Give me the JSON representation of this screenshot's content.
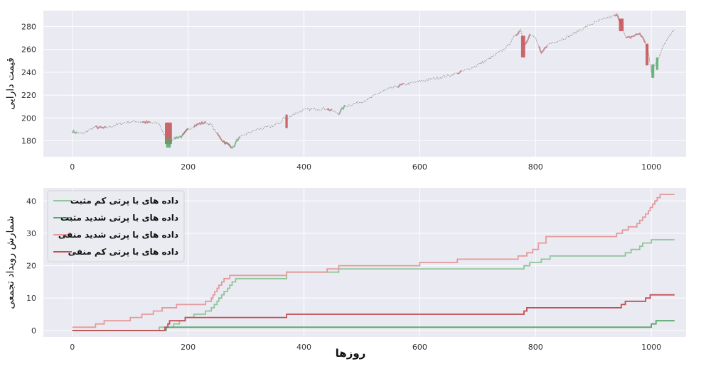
{
  "chart_data": [
    {
      "type": "line",
      "ylabel": "قیمت دارایی",
      "xlabel": "",
      "xlim": [
        -50,
        1060
      ],
      "ylim": [
        166,
        294
      ],
      "xticks": [
        0,
        200,
        400,
        600,
        800,
        1000
      ],
      "yticks": [
        180,
        200,
        220,
        240,
        260,
        280
      ],
      "grid": true,
      "price_anchors": [
        [
          0,
          188
        ],
        [
          10,
          187
        ],
        [
          20,
          186
        ],
        [
          30,
          190
        ],
        [
          40,
          192
        ],
        [
          55,
          191
        ],
        [
          70,
          193
        ],
        [
          90,
          196
        ],
        [
          110,
          197
        ],
        [
          130,
          196
        ],
        [
          150,
          195
        ],
        [
          160,
          184
        ],
        [
          165,
          177
        ],
        [
          172,
          181
        ],
        [
          180,
          183
        ],
        [
          190,
          184
        ],
        [
          200,
          190
        ],
        [
          210,
          193
        ],
        [
          220,
          195
        ],
        [
          230,
          196
        ],
        [
          240,
          194
        ],
        [
          250,
          186
        ],
        [
          260,
          180
        ],
        [
          268,
          177
        ],
        [
          278,
          174
        ],
        [
          285,
          181
        ],
        [
          300,
          186
        ],
        [
          320,
          190
        ],
        [
          340,
          192
        ],
        [
          360,
          196
        ],
        [
          365,
          201
        ],
        [
          370,
          198
        ],
        [
          380,
          203
        ],
        [
          400,
          207
        ],
        [
          420,
          208
        ],
        [
          440,
          208
        ],
        [
          460,
          204
        ],
        [
          470,
          210
        ],
        [
          490,
          213
        ],
        [
          510,
          216
        ],
        [
          530,
          222
        ],
        [
          550,
          226
        ],
        [
          570,
          229
        ],
        [
          590,
          231
        ],
        [
          610,
          233
        ],
        [
          630,
          235
        ],
        [
          650,
          237
        ],
        [
          670,
          240
        ],
        [
          690,
          244
        ],
        [
          710,
          249
        ],
        [
          730,
          255
        ],
        [
          750,
          262
        ],
        [
          765,
          272
        ],
        [
          775,
          278
        ],
        [
          780,
          263
        ],
        [
          790,
          273
        ],
        [
          800,
          270
        ],
        [
          810,
          256
        ],
        [
          820,
          264
        ],
        [
          840,
          268
        ],
        [
          860,
          272
        ],
        [
          880,
          278
        ],
        [
          900,
          283
        ],
        [
          920,
          287
        ],
        [
          940,
          290
        ],
        [
          948,
          284
        ],
        [
          955,
          270
        ],
        [
          960,
          270
        ],
        [
          970,
          272
        ],
        [
          980,
          274
        ],
        [
          990,
          266
        ],
        [
          995,
          256
        ],
        [
          1000,
          240
        ],
        [
          1005,
          245
        ],
        [
          1010,
          250
        ],
        [
          1020,
          262
        ],
        [
          1030,
          272
        ],
        [
          1040,
          278
        ]
      ],
      "highlights": [
        {
          "kind": "strong_negative",
          "color": "#c44e52",
          "x": [
            160,
            172
          ],
          "y": [
            177,
            196
          ]
        },
        {
          "kind": "strong_positive",
          "color": "#55a868",
          "x": [
            162,
            170
          ],
          "y": [
            174,
            182
          ]
        },
        {
          "kind": "strong_negative",
          "color": "#c44e52",
          "x": [
            368,
            372
          ],
          "y": [
            191,
            203
          ]
        },
        {
          "kind": "strong_negative",
          "color": "#c44e52",
          "x": [
            775,
            782
          ],
          "y": [
            253,
            272
          ]
        },
        {
          "kind": "strong_negative",
          "color": "#c44e52",
          "x": [
            944,
            952
          ],
          "y": [
            276,
            287
          ]
        },
        {
          "kind": "strong_negative",
          "color": "#c44e52",
          "x": [
            990,
            995
          ],
          "y": [
            246,
            265
          ]
        },
        {
          "kind": "strong_positive",
          "color": "#55a868",
          "x": [
            1000,
            1005
          ],
          "y": [
            235,
            247
          ]
        },
        {
          "kind": "strong_positive",
          "color": "#55a868",
          "x": [
            1008,
            1012
          ],
          "y": [
            242,
            253
          ]
        }
      ],
      "mild_spans": [
        {
          "color": "#55a868",
          "x": [
            0,
            8
          ]
        },
        {
          "color": "#55a868",
          "x": [
            175,
            200
          ]
        },
        {
          "color": "#55a868",
          "x": [
            260,
            290
          ]
        },
        {
          "color": "#55a868",
          "x": [
            460,
            470
          ]
        },
        {
          "color": "#c44e52",
          "x": [
            40,
            58
          ]
        },
        {
          "color": "#c44e52",
          "x": [
            120,
            135
          ]
        },
        {
          "color": "#c44e52",
          "x": [
            190,
            200
          ]
        },
        {
          "color": "#c44e52",
          "x": [
            210,
            230
          ]
        },
        {
          "color": "#c44e52",
          "x": [
            250,
            275
          ]
        },
        {
          "color": "#c44e52",
          "x": [
            440,
            448
          ]
        },
        {
          "color": "#c44e52",
          "x": [
            562,
            572
          ]
        },
        {
          "color": "#c44e52",
          "x": [
            665,
            672
          ]
        },
        {
          "color": "#c44e52",
          "x": [
            765,
            772
          ]
        },
        {
          "color": "#c44e52",
          "x": [
            782,
            790
          ]
        },
        {
          "color": "#c44e52",
          "x": [
            805,
            820
          ]
        },
        {
          "color": "#c44e52",
          "x": [
            935,
            948
          ]
        },
        {
          "color": "#c44e52",
          "x": [
            955,
            990
          ]
        }
      ]
    },
    {
      "type": "line",
      "xlabel": "روزها",
      "ylabel": "شمارش رویداد تجمعی",
      "xlim": [
        -50,
        1060
      ],
      "ylim": [
        -2,
        44
      ],
      "xticks": [
        0,
        200,
        400,
        600,
        800,
        1000
      ],
      "yticks": [
        0,
        10,
        20,
        30,
        40
      ],
      "grid": true,
      "legend_position": "top-left",
      "series": [
        {
          "name": "داده های با پرتی کم مثبت",
          "color": "#8fc69a",
          "width": 1.8,
          "steps": [
            [
              0,
              0
            ],
            [
              150,
              1
            ],
            [
              175,
              2
            ],
            [
              185,
              3
            ],
            [
              195,
              4
            ],
            [
              210,
              5
            ],
            [
              230,
              6
            ],
            [
              240,
              7
            ],
            [
              245,
              8
            ],
            [
              250,
              9
            ],
            [
              253,
              10
            ],
            [
              258,
              11
            ],
            [
              262,
              12
            ],
            [
              268,
              13
            ],
            [
              272,
              14
            ],
            [
              276,
              15
            ],
            [
              282,
              16
            ],
            [
              370,
              18
            ],
            [
              460,
              19
            ],
            [
              780,
              20
            ],
            [
              790,
              21
            ],
            [
              810,
              22
            ],
            [
              825,
              23
            ],
            [
              955,
              24
            ],
            [
              965,
              25
            ],
            [
              980,
              26
            ],
            [
              985,
              27
            ],
            [
              1000,
              28
            ],
            [
              1040,
              28
            ]
          ]
        },
        {
          "name": "داده های با پرتی شدید مثبت",
          "color": "#55a868",
          "width": 1.8,
          "steps": [
            [
              0,
              0
            ],
            [
              162,
              1
            ],
            [
              1000,
              2
            ],
            [
              1008,
              3
            ],
            [
              1040,
              3
            ]
          ]
        },
        {
          "name": "داده های با پرتی شدید منفی",
          "color": "#e59a9c",
          "width": 1.8,
          "steps": [
            [
              0,
              1
            ],
            [
              40,
              2
            ],
            [
              55,
              3
            ],
            [
              100,
              4
            ],
            [
              120,
              5
            ],
            [
              140,
              6
            ],
            [
              155,
              7
            ],
            [
              180,
              8
            ],
            [
              230,
              9
            ],
            [
              240,
              10
            ],
            [
              243,
              11
            ],
            [
              246,
              12
            ],
            [
              250,
              13
            ],
            [
              253,
              14
            ],
            [
              258,
              15
            ],
            [
              262,
              16
            ],
            [
              272,
              17
            ],
            [
              370,
              18
            ],
            [
              440,
              19
            ],
            [
              460,
              20
            ],
            [
              600,
              21
            ],
            [
              665,
              22
            ],
            [
              770,
              23
            ],
            [
              785,
              24
            ],
            [
              795,
              25
            ],
            [
              805,
              27
            ],
            [
              818,
              29
            ],
            [
              940,
              30
            ],
            [
              950,
              31
            ],
            [
              960,
              32
            ],
            [
              975,
              33
            ],
            [
              980,
              34
            ],
            [
              985,
              35
            ],
            [
              990,
              36
            ],
            [
              995,
              37
            ],
            [
              998,
              38
            ],
            [
              1002,
              39
            ],
            [
              1006,
              40
            ],
            [
              1010,
              41
            ],
            [
              1015,
              42
            ],
            [
              1040,
              42
            ]
          ]
        },
        {
          "name": "داده های با پرتی کم منفی",
          "color": "#c44e52",
          "width": 1.8,
          "steps": [
            [
              0,
              0
            ],
            [
              160,
              1
            ],
            [
              165,
              2
            ],
            [
              168,
              3
            ],
            [
              195,
              4
            ],
            [
              370,
              5
            ],
            [
              780,
              6
            ],
            [
              785,
              7
            ],
            [
              948,
              8
            ],
            [
              955,
              9
            ],
            [
              990,
              10
            ],
            [
              998,
              11
            ],
            [
              1040,
              11
            ]
          ]
        }
      ]
    }
  ],
  "colors": {
    "panel_bg": "#eaeaf2",
    "grid": "#ffffff",
    "price_line": "#8a8a8a",
    "positive": "#55a868",
    "negative": "#c44e52"
  }
}
